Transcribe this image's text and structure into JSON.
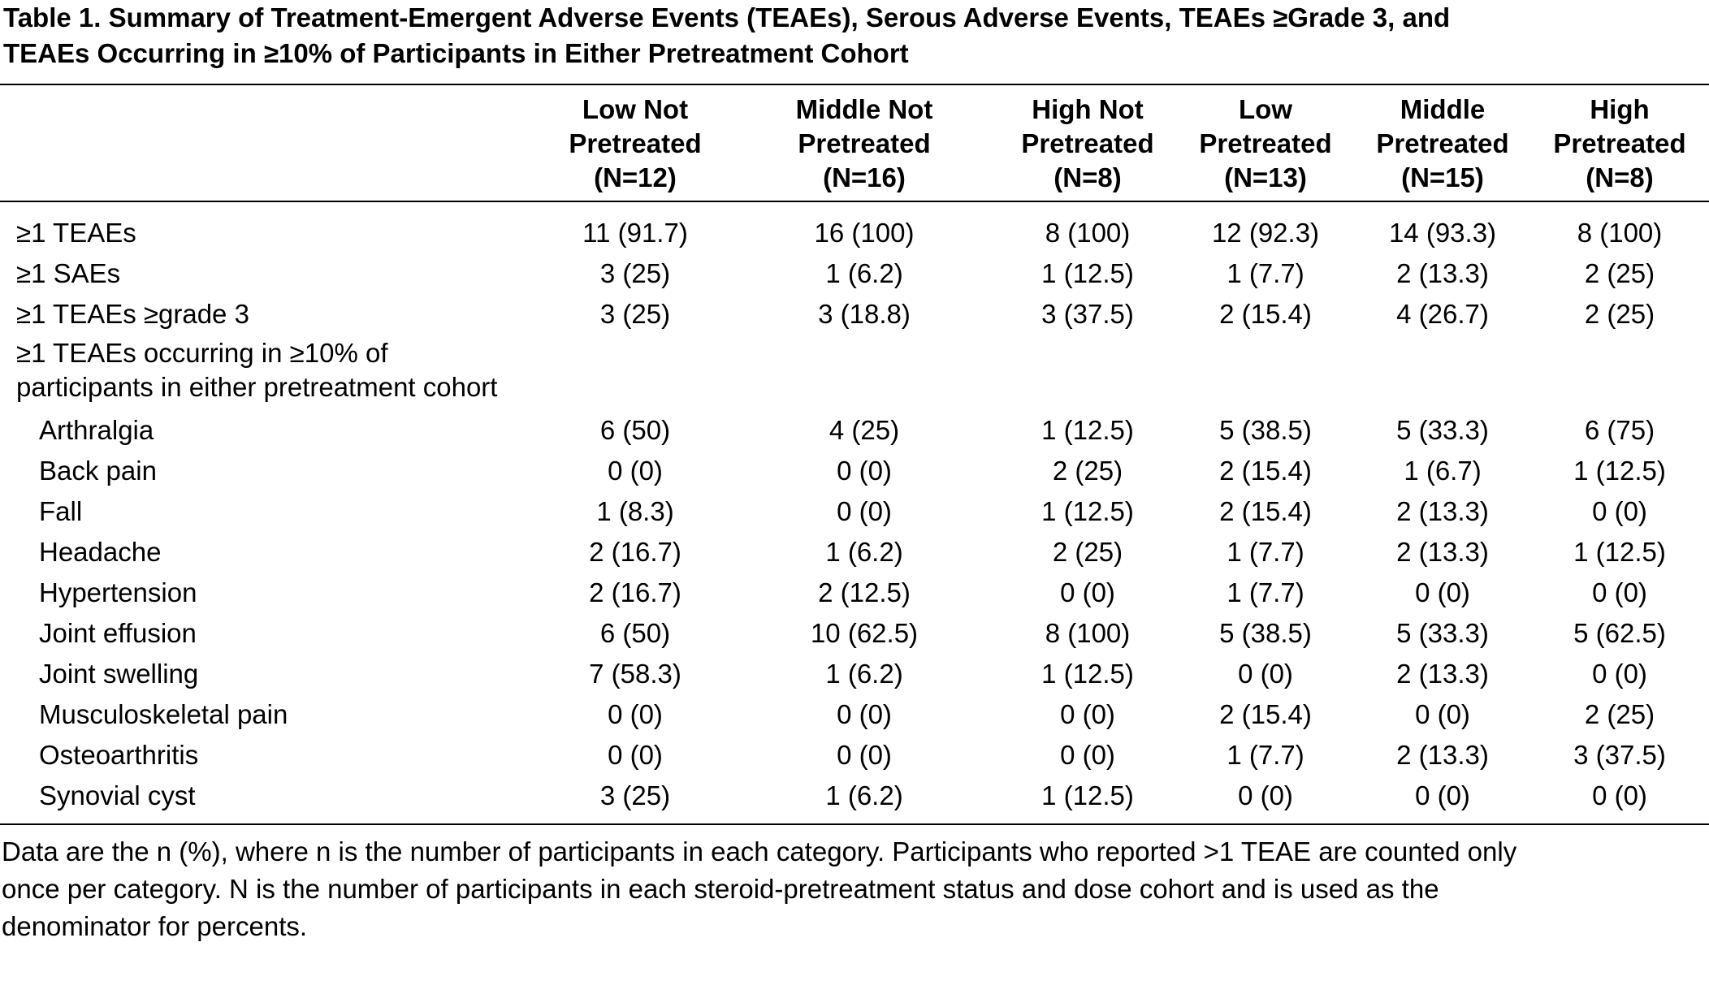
{
  "caption": {
    "line1": "Table 1. Summary of Treatment-Emergent Adverse Events (TEAEs), Serous Adverse Events, TEAEs ≥Grade 3, and",
    "line2": "TEAEs Occurring in ≥10% of Participants in Either Pretreatment Cohort"
  },
  "columns": [
    {
      "line1": "Low Not",
      "line2": "Pretreated",
      "line3": "(N=12)"
    },
    {
      "line1": "Middle Not",
      "line2": "Pretreated",
      "line3": "(N=16)"
    },
    {
      "line1": "High Not",
      "line2": "Pretreated",
      "line3": "(N=8)"
    },
    {
      "line1": "Low",
      "line2": "Pretreated",
      "line3": "(N=13)"
    },
    {
      "line1": "Middle",
      "line2": "Pretreated",
      "line3": "(N=15)"
    },
    {
      "line1": "High",
      "line2": "Pretreated",
      "line3": "(N=8)"
    }
  ],
  "summary_rows": [
    {
      "label": "≥1 TEAEs",
      "values": [
        "11 (91.7)",
        "16 (100)",
        "8 (100)",
        "12 (92.3)",
        "14 (93.3)",
        "8 (100)"
      ]
    },
    {
      "label": "≥1 SAEs",
      "values": [
        "3 (25)",
        "1 (6.2)",
        "1 (12.5)",
        "1 (7.7)",
        "2 (13.3)",
        "2 (25)"
      ]
    },
    {
      "label": "≥1 TEAEs ≥grade 3",
      "values": [
        "3 (25)",
        "3 (18.8)",
        "3 (37.5)",
        "2 (15.4)",
        "4 (26.7)",
        "2 (25)"
      ]
    }
  ],
  "section_label": {
    "line1": "≥1 TEAEs occurring in ≥10% of",
    "line2": "participants in either pretreatment cohort"
  },
  "event_rows": [
    {
      "label": "Arthralgia",
      "values": [
        "6 (50)",
        "4 (25)",
        "1 (12.5)",
        "5 (38.5)",
        "5 (33.3)",
        "6 (75)"
      ]
    },
    {
      "label": "Back pain",
      "values": [
        "0 (0)",
        "0 (0)",
        "2 (25)",
        "2 (15.4)",
        "1 (6.7)",
        "1 (12.5)"
      ]
    },
    {
      "label": "Fall",
      "values": [
        "1 (8.3)",
        "0 (0)",
        "1 (12.5)",
        "2 (15.4)",
        "2 (13.3)",
        "0 (0)"
      ]
    },
    {
      "label": "Headache",
      "values": [
        "2 (16.7)",
        "1 (6.2)",
        "2 (25)",
        "1 (7.7)",
        "2 (13.3)",
        "1 (12.5)"
      ]
    },
    {
      "label": "Hypertension",
      "values": [
        "2 (16.7)",
        "2 (12.5)",
        "0 (0)",
        "1 (7.7)",
        "0 (0)",
        "0 (0)"
      ]
    },
    {
      "label": "Joint effusion",
      "values": [
        "6 (50)",
        "10 (62.5)",
        "8 (100)",
        "5 (38.5)",
        "5 (33.3)",
        "5 (62.5)"
      ]
    },
    {
      "label": "Joint swelling",
      "values": [
        "7 (58.3)",
        "1 (6.2)",
        "1 (12.5)",
        "0 (0)",
        "2 (13.3)",
        "0 (0)"
      ]
    },
    {
      "label": "Musculoskeletal pain",
      "values": [
        "0 (0)",
        "0 (0)",
        "0 (0)",
        "2 (15.4)",
        "0 (0)",
        "2 (25)"
      ]
    },
    {
      "label": "Osteoarthritis",
      "values": [
        "0 (0)",
        "0 (0)",
        "0 (0)",
        "1 (7.7)",
        "2 (13.3)",
        "3 (37.5)"
      ]
    },
    {
      "label": "Synovial cyst",
      "values": [
        "3 (25)",
        "1 (6.2)",
        "1 (12.5)",
        "0 (0)",
        "0 (0)",
        "0 (0)"
      ]
    }
  ],
  "footnote": {
    "line1": "Data are the n (%), where n is the number of participants in each category. Participants who reported >1 TEAE are counted only",
    "line2": "once per category. N is the number of participants in each steroid-pretreatment status and dose cohort and is used as the",
    "line3": "denominator for percents."
  }
}
